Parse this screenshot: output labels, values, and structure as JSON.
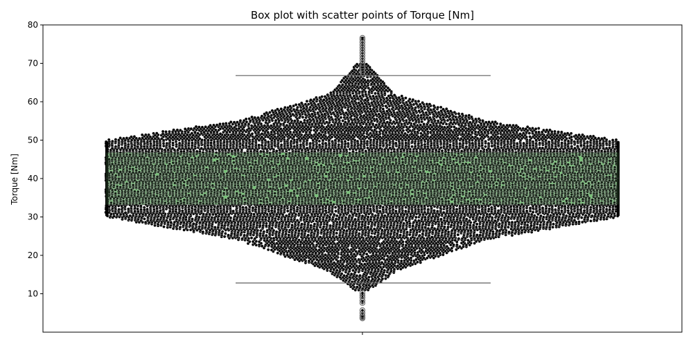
{
  "chart_data": {
    "type": "box",
    "title": "Box plot with scatter points of Torque [Nm]",
    "ylabel": "Torque [Nm]",
    "xlabel": "",
    "ylim": [
      0,
      80
    ],
    "yticks": [
      10,
      20,
      30,
      40,
      50,
      60,
      70,
      80
    ],
    "box": {
      "whisker_low": 12.8,
      "q1": 33.2,
      "median": 40.1,
      "q3": 46.8,
      "whisker_high": 66.8
    },
    "outliers": [
      3.6,
      3.9,
      4.3,
      5.0,
      5.7,
      7.6,
      8.2,
      9.0,
      9.6,
      10.2,
      67.5,
      68.0,
      68.6,
      69.2,
      69.9,
      70.6,
      71.3,
      72.0,
      72.7,
      73.4,
      74.1,
      74.8,
      75.5,
      76.2,
      76.6
    ],
    "swarm": {
      "point_color": "#000000",
      "point_edge": "#ffffff",
      "box_fill": "#77c077",
      "approx_count": 10000
    }
  }
}
